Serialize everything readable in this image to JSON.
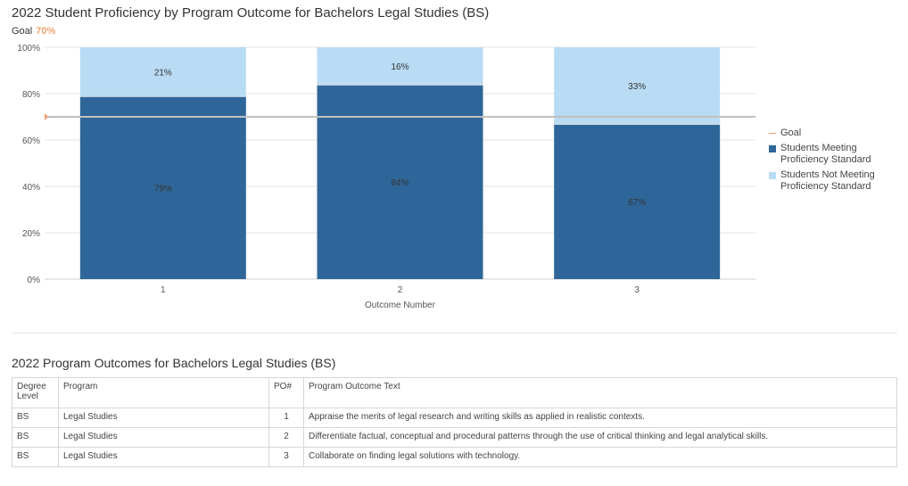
{
  "title": "2022 Student Proficiency by Program Outcome for Bachelors Legal Studies (BS)",
  "goal_label": "Goal",
  "goal_value_text": "70%",
  "colors": {
    "meeting": "#2f6699",
    "not_meeting": "#b9dbf4",
    "goal": "#f0a070",
    "goal_line": "#c0c0c0"
  },
  "chart_data": {
    "type": "bar",
    "stacked": true,
    "categories": [
      "1",
      "2",
      "3"
    ],
    "series": [
      {
        "name": "Students Meeting Proficiency Standard",
        "values": [
          79,
          84,
          67
        ],
        "labels": [
          "79%",
          "84%",
          "67%"
        ]
      },
      {
        "name": "Students Not Meeting Proficiency Standard",
        "values": [
          21,
          16,
          33
        ],
        "labels": [
          "21%",
          "16%",
          "33%"
        ]
      }
    ],
    "goal": 70,
    "xlabel": "Outcome Number",
    "ylabel": "",
    "ylim": [
      0,
      100
    ],
    "yticks": [
      0,
      20,
      40,
      60,
      80,
      100
    ],
    "yticklabels": [
      "0%",
      "20%",
      "40%",
      "60%",
      "80%",
      "100%"
    ],
    "grid": true,
    "legend_position": "right"
  },
  "legend": [
    {
      "label": "Goal",
      "kind": "line",
      "color": "#f0a070"
    },
    {
      "label": "Students Meeting\nProficiency Standard",
      "kind": "box",
      "color": "#2f6699"
    },
    {
      "label": "Students Not Meeting\nProficiency Standard",
      "kind": "box",
      "color": "#b9dbf4"
    }
  ],
  "table": {
    "title": "2022 Program Outcomes for Bachelors Legal Studies (BS)",
    "headers": {
      "degree": "Degree Level",
      "program": "Program",
      "po": "PO#",
      "text": "Program Outcome Text"
    },
    "rows": [
      {
        "degree": "BS",
        "program": "Legal Studies",
        "po": "1",
        "text": "Appraise the merits of legal research and writing skills as applied in realistic contexts."
      },
      {
        "degree": "BS",
        "program": "Legal Studies",
        "po": "2",
        "text": "Differentiate factual, conceptual and procedural patterns through the use of critical thinking and legal analytical skills."
      },
      {
        "degree": "BS",
        "program": "Legal Studies",
        "po": "3",
        "text": "Collaborate on finding legal solutions with technology."
      }
    ]
  }
}
